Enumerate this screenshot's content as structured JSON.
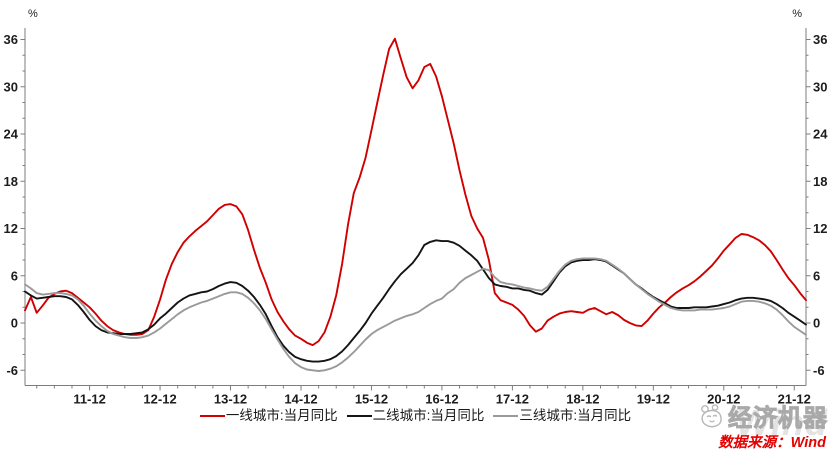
{
  "chart_data": {
    "type": "line",
    "title": "",
    "unit_left": "%",
    "unit_right": "%",
    "x_frequency": "monthly",
    "x_start": "2011-01",
    "x_end": "2022-02",
    "x_tick_labels": [
      "11-12",
      "12-12",
      "13-12",
      "14-12",
      "15-12",
      "16-12",
      "17-12",
      "18-12",
      "19-12",
      "20-12",
      "21-12"
    ],
    "y_ticks": [
      -6,
      0,
      6,
      12,
      18,
      24,
      30,
      36
    ],
    "y_minor_step": 2,
    "ylim": [
      -7.9,
      37.5
    ],
    "grid": false,
    "legend_position": "bottom-center",
    "series": [
      {
        "id": "tier1",
        "name": "一线城市:当月同比",
        "color": "#d00000",
        "values": [
          1.6,
          3.3,
          1.3,
          2.2,
          3.2,
          3.7,
          4.0,
          4.1,
          3.8,
          3.2,
          2.6,
          2.0,
          1.2,
          0.3,
          -0.4,
          -0.9,
          -1.2,
          -1.4,
          -1.5,
          -1.5,
          -1.4,
          -0.9,
          0.8,
          3.0,
          5.5,
          7.5,
          9.0,
          10.2,
          11.0,
          11.7,
          12.3,
          12.9,
          13.7,
          14.5,
          15.0,
          15.1,
          14.8,
          13.8,
          11.8,
          9.3,
          7.0,
          5.1,
          3.0,
          1.4,
          0.2,
          -0.8,
          -1.6,
          -2.0,
          -2.5,
          -2.8,
          -2.3,
          -1.2,
          0.8,
          3.5,
          7.5,
          12.5,
          16.5,
          18.5,
          21.0,
          24.5,
          28.0,
          31.5,
          34.8,
          36.1,
          33.6,
          31.2,
          29.8,
          30.8,
          32.5,
          32.9,
          31.3,
          28.8,
          25.8,
          22.8,
          19.4,
          16.3,
          13.6,
          12.0,
          10.8,
          8.0,
          3.8,
          2.9,
          2.6,
          2.3,
          1.7,
          0.9,
          -0.3,
          -1.1,
          -0.7,
          0.3,
          0.8,
          1.2,
          1.4,
          1.5,
          1.4,
          1.3,
          1.7,
          1.9,
          1.5,
          1.1,
          1.4,
          1.0,
          0.4,
          0.0,
          -0.3,
          -0.4,
          0.3,
          1.2,
          2.0,
          2.6,
          3.3,
          3.9,
          4.4,
          4.8,
          5.3,
          5.9,
          6.6,
          7.3,
          8.2,
          9.2,
          10.0,
          10.8,
          11.3,
          11.2,
          10.9,
          10.5,
          9.9,
          9.1,
          8.0,
          6.8,
          5.7,
          4.8,
          3.8,
          2.9
        ]
      },
      {
        "id": "tier2",
        "name": "二线城市:当月同比",
        "color": "#141414",
        "values": [
          4.0,
          3.5,
          3.1,
          3.2,
          3.3,
          3.4,
          3.4,
          3.3,
          3.0,
          2.3,
          1.4,
          0.4,
          -0.4,
          -0.9,
          -1.2,
          -1.3,
          -1.4,
          -1.4,
          -1.4,
          -1.3,
          -1.2,
          -0.8,
          -0.2,
          0.6,
          1.2,
          1.9,
          2.6,
          3.1,
          3.5,
          3.7,
          3.9,
          4.0,
          4.3,
          4.7,
          5.0,
          5.2,
          5.1,
          4.7,
          4.1,
          3.3,
          2.3,
          1.1,
          -0.4,
          -1.8,
          -2.9,
          -3.7,
          -4.3,
          -4.6,
          -4.8,
          -4.9,
          -4.9,
          -4.8,
          -4.6,
          -4.2,
          -3.6,
          -2.8,
          -1.9,
          -1.0,
          0.0,
          1.2,
          2.2,
          3.2,
          4.3,
          5.3,
          6.2,
          6.9,
          7.6,
          8.6,
          9.9,
          10.3,
          10.5,
          10.4,
          10.4,
          10.2,
          9.8,
          9.2,
          8.6,
          7.9,
          6.8,
          5.7,
          4.9,
          4.7,
          4.6,
          4.4,
          4.4,
          4.2,
          4.1,
          3.8,
          3.6,
          4.2,
          5.3,
          6.4,
          7.2,
          7.7,
          7.9,
          8.0,
          8.0,
          8.1,
          8.0,
          7.8,
          7.3,
          6.8,
          6.3,
          5.6,
          4.9,
          4.4,
          3.8,
          3.3,
          2.9,
          2.5,
          2.1,
          1.9,
          1.9,
          1.9,
          2.0,
          2.0,
          2.0,
          2.1,
          2.2,
          2.4,
          2.6,
          2.9,
          3.1,
          3.2,
          3.2,
          3.1,
          3.0,
          2.8,
          2.4,
          1.9,
          1.3,
          0.8,
          0.3,
          -0.2
        ]
      },
      {
        "id": "tier3",
        "name": "三线城市:当月同比",
        "color": "#9a9a9a",
        "values": [
          4.9,
          4.4,
          3.8,
          3.6,
          3.7,
          3.8,
          3.8,
          3.7,
          3.5,
          3.0,
          2.2,
          1.2,
          0.3,
          -0.4,
          -1.0,
          -1.4,
          -1.6,
          -1.8,
          -1.9,
          -1.9,
          -1.8,
          -1.6,
          -1.2,
          -0.7,
          -0.1,
          0.5,
          1.1,
          1.6,
          2.0,
          2.3,
          2.6,
          2.8,
          3.1,
          3.4,
          3.7,
          3.9,
          3.9,
          3.7,
          3.2,
          2.5,
          1.6,
          0.5,
          -0.8,
          -2.1,
          -3.3,
          -4.3,
          -5.1,
          -5.6,
          -5.9,
          -6.0,
          -6.1,
          -6.0,
          -5.8,
          -5.5,
          -5.0,
          -4.4,
          -3.7,
          -2.9,
          -2.1,
          -1.4,
          -0.9,
          -0.5,
          -0.1,
          0.3,
          0.6,
          0.9,
          1.1,
          1.4,
          1.9,
          2.4,
          2.8,
          3.1,
          3.8,
          4.3,
          5.1,
          5.7,
          6.1,
          6.5,
          6.9,
          6.7,
          5.8,
          5.2,
          5.0,
          4.9,
          4.7,
          4.5,
          4.4,
          4.2,
          4.1,
          4.6,
          5.6,
          6.6,
          7.4,
          7.9,
          8.1,
          8.2,
          8.2,
          8.2,
          8.1,
          7.9,
          7.4,
          6.9,
          6.3,
          5.6,
          4.9,
          4.3,
          3.7,
          3.2,
          2.7,
          2.3,
          1.9,
          1.7,
          1.6,
          1.6,
          1.6,
          1.7,
          1.7,
          1.7,
          1.8,
          1.9,
          2.1,
          2.4,
          2.7,
          2.8,
          2.8,
          2.7,
          2.5,
          2.2,
          1.7,
          1.0,
          0.2,
          -0.5,
          -1.0,
          -1.5
        ]
      }
    ]
  },
  "watermark": {
    "brand": "经济机器",
    "background_word": "Wind",
    "source": "数据来源：Wind",
    "source_color": "#e60000"
  }
}
